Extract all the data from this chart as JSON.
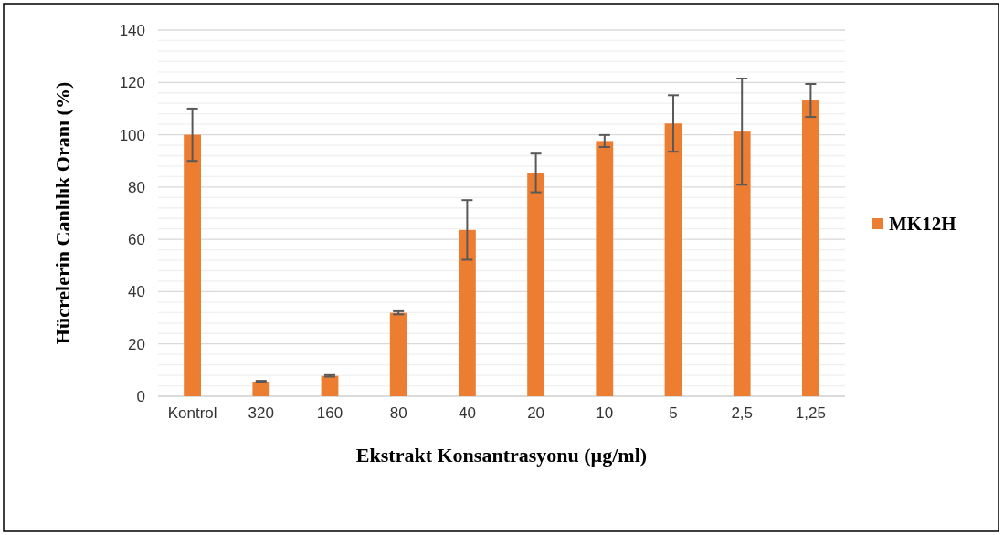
{
  "chart_data": {
    "type": "bar",
    "xlabel": "Ekstrakt Konsantrasyonu (µg/ml)",
    "ylabel": "Hücrelerin Canlılık Oranı (%)",
    "categories": [
      "Kontrol",
      "320",
      "160",
      "80",
      "40",
      "20",
      "10",
      "5",
      "2,5",
      "1,25"
    ],
    "series": [
      {
        "name": "MK12H",
        "color": "#ed7d31",
        "values": [
          100,
          5.6,
          7.8,
          31.9,
          63.6,
          85.4,
          97.6,
          104.3,
          101.2,
          113.1
        ],
        "errors": [
          10,
          0.3,
          0.3,
          0.6,
          11.4,
          7.4,
          2.3,
          10.8,
          20.3,
          6.3
        ]
      }
    ],
    "ylim": [
      0,
      140
    ],
    "yticks": [
      0,
      {
        "value": 4,
        "label": null
      },
      {
        "value": 8,
        "label": null
      },
      {
        "value": 12,
        "label": null
      },
      {
        "value": 16,
        "label": null
      },
      20,
      {
        "value": 24,
        "label": null
      },
      {
        "value": 28,
        "label": null
      },
      {
        "value": 32,
        "label": null
      },
      {
        "value": 36,
        "label": null
      },
      40,
      {
        "value": 44,
        "label": null
      },
      {
        "value": 48,
        "label": null
      },
      {
        "value": 52,
        "label": null
      },
      {
        "value": 56,
        "label": null
      },
      60,
      {
        "value": 64,
        "label": null
      },
      {
        "value": 68,
        "label": null
      },
      {
        "value": 72,
        "label": null
      },
      {
        "value": 76,
        "label": null
      },
      80,
      {
        "value": 84,
        "label": null
      },
      {
        "value": 88,
        "label": null
      },
      {
        "value": 92,
        "label": null
      },
      {
        "value": 96,
        "label": null
      },
      100,
      {
        "value": 104,
        "label": null
      },
      {
        "value": 108,
        "label": null
      },
      {
        "value": 112,
        "label": null
      },
      {
        "value": 116,
        "label": null
      },
      120,
      {
        "value": 124,
        "label": null
      },
      {
        "value": 128,
        "label": null
      },
      {
        "value": 132,
        "label": null
      },
      {
        "value": 136,
        "label": null
      },
      140
    ],
    "grid": "y",
    "legend": "right"
  }
}
